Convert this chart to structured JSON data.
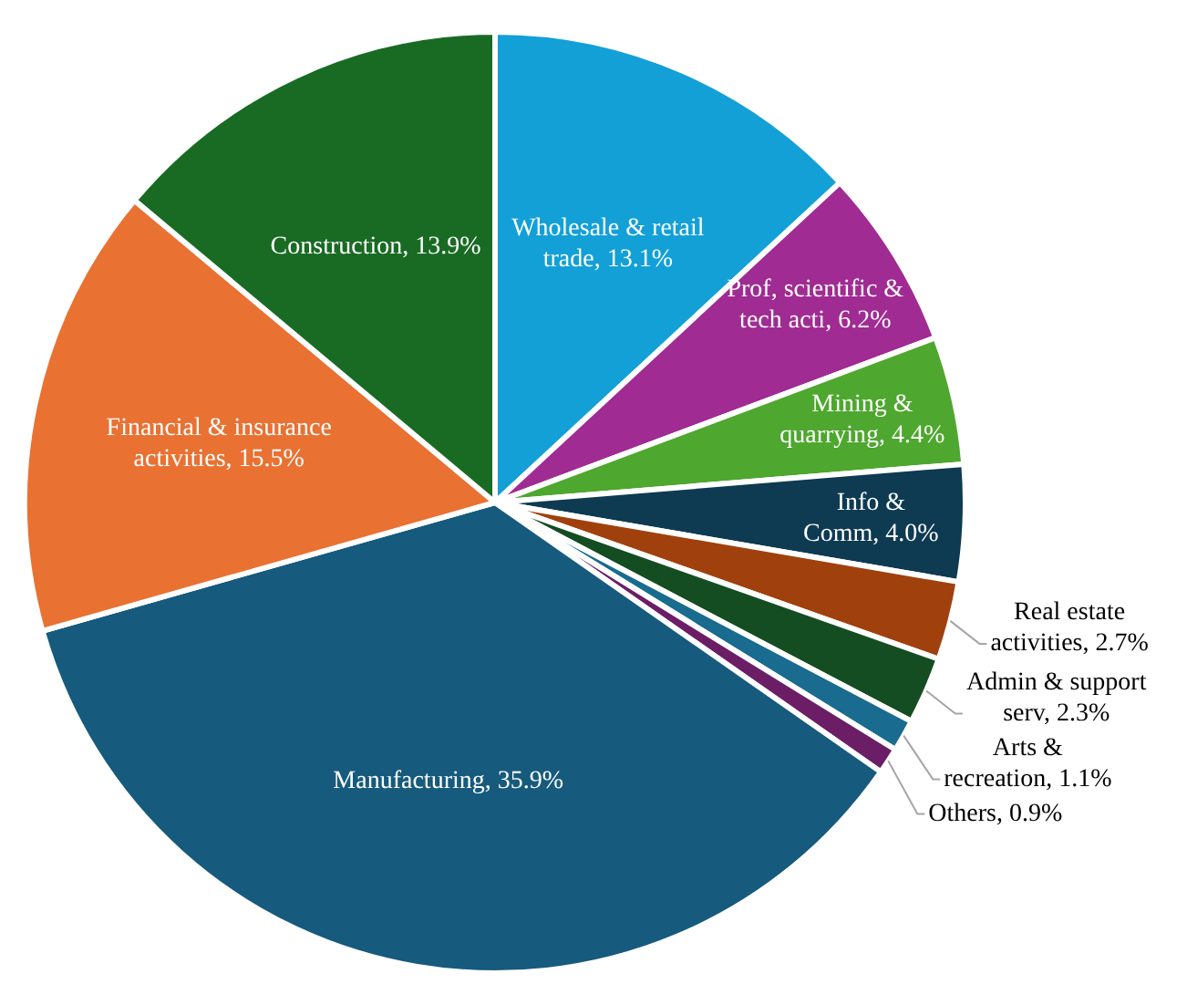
{
  "chart_data": {
    "type": "pie",
    "categories": [
      "Wholesale & retail trade",
      "Prof, scientific & tech acti",
      "Mining & quarrying",
      "Info & Comm",
      "Real estate activities",
      "Admin & support serv",
      "Arts & recreation",
      "Others",
      "Manufacturing",
      "Financial & insurance activities",
      "Construction"
    ],
    "value_labels": [
      "13.1%",
      "6.2%",
      "4.4%",
      "4.0%",
      "2.7%",
      "2.3%",
      "1.1%",
      "0.9%",
      "35.9%",
      "15.5%",
      "13.9%"
    ],
    "values": [
      13.1,
      6.2,
      4.4,
      4.0,
      2.7,
      2.3,
      1.1,
      0.9,
      35.9,
      15.5,
      13.9
    ],
    "colors": [
      "#12a0d7",
      "#a02b93",
      "#4ea72e",
      "#0e3a52",
      "#a0410d",
      "#144d21",
      "#196b8f",
      "#6b1e66",
      "#165a7d",
      "#e97132",
      "#196b24"
    ],
    "data_labels": true,
    "legend": false
  }
}
